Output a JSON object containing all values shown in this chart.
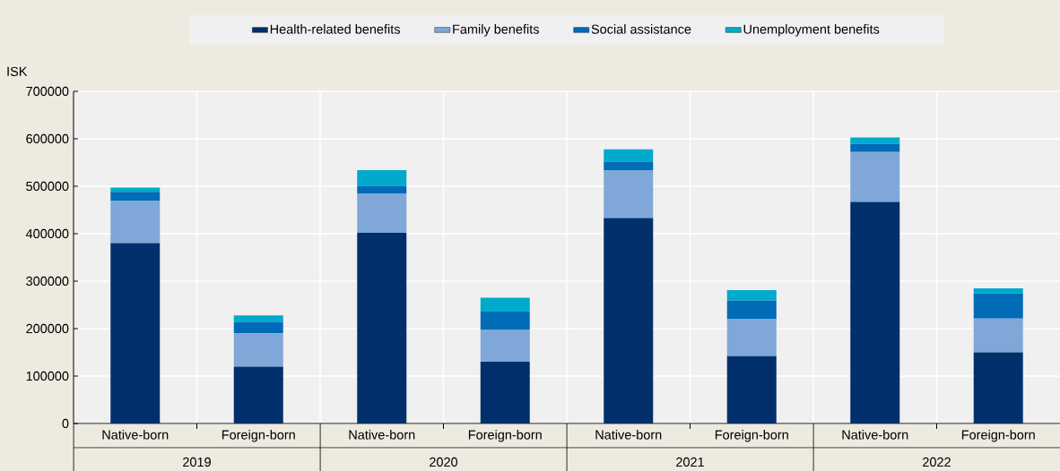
{
  "chart_data": {
    "type": "bar",
    "stacked": true,
    "ylabel": "ISK",
    "categories": [
      "Native-born",
      "Foreign-born",
      "Native-born",
      "Foreign-born",
      "Native-born",
      "Foreign-born",
      "Native-born",
      "Foreign-born"
    ],
    "annotations": [
      "2019",
      "2020",
      "2021",
      "2022"
    ],
    "series": [
      {
        "name": "Health-related benefits",
        "color": "#002f6c",
        "values": [
          380000,
          120000,
          402000,
          130000,
          433000,
          142000,
          467000,
          150000
        ]
      },
      {
        "name": "Family benefits",
        "color": "#7fa7d8",
        "values": [
          90000,
          70000,
          82000,
          68000,
          100000,
          78000,
          105000,
          71000
        ]
      },
      {
        "name": "Social assistance",
        "color": "#006bb6",
        "values": [
          18000,
          24000,
          17000,
          38000,
          19000,
          39000,
          17000,
          53000
        ]
      },
      {
        "name": "Unemployment benefits",
        "color": "#00aacc",
        "values": [
          9000,
          14000,
          33000,
          29000,
          26000,
          22000,
          14000,
          11000
        ]
      }
    ],
    "ylim": [
      0,
      700000
    ],
    "yticks": [
      0,
      100000,
      200000,
      300000,
      400000,
      500000,
      600000,
      700000
    ],
    "grid": true,
    "legend": "top"
  }
}
